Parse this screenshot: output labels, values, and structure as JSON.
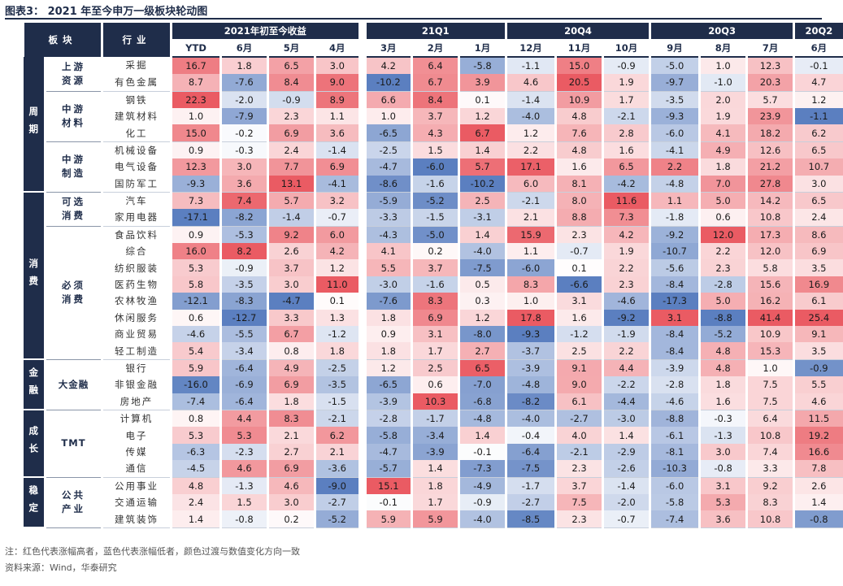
{
  "title": "图表3：  2021 年至今申万一级板块轮动图",
  "header": {
    "sector": "板块",
    "industry": "行业",
    "groups": [
      "2021年初至今收益",
      "21Q1",
      "20Q4",
      "20Q3",
      "20Q2"
    ],
    "cols": [
      "YTD",
      "6月",
      "5月",
      "4月",
      "3月",
      "2月",
      "1月",
      "12月",
      "11月",
      "10月",
      "9月",
      "8月",
      "7月",
      "6月"
    ]
  },
  "sections": [
    {
      "name": "周期",
      "groups": [
        {
          "name": "上游资源",
          "rows": [
            {
              "ind": "采掘",
              "v": [
                16.7,
                1.8,
                6.5,
                3.0,
                4.2,
                6.4,
                -5.8,
                -1.1,
                15.0,
                -0.9,
                -5.0,
                1.0,
                12.3,
                -0.1
              ]
            },
            {
              "ind": "有色金属",
              "v": [
                8.7,
                -7.6,
                8.4,
                9.0,
                -10.2,
                6.7,
                3.9,
                4.6,
                20.5,
                1.9,
                -9.7,
                -1.0,
                20.3,
                4.7
              ]
            }
          ]
        },
        {
          "name": "中游材料",
          "rows": [
            {
              "ind": "钢铁",
              "v": [
                22.3,
                -2.0,
                -0.9,
                8.9,
                6.6,
                8.4,
                0.1,
                -1.4,
                10.9,
                1.7,
                -3.5,
                2.0,
                5.7,
                1.2
              ]
            },
            {
              "ind": "建筑材料",
              "v": [
                1.0,
                -7.9,
                2.3,
                1.1,
                1.0,
                3.7,
                1.2,
                -4.0,
                4.8,
                -2.1,
                -9.3,
                1.9,
                23.9,
                -1.1
              ]
            },
            {
              "ind": "化工",
              "v": [
                15.0,
                -0.2,
                6.9,
                3.6,
                -6.5,
                4.3,
                6.7,
                1.2,
                7.6,
                2.8,
                -6.0,
                4.1,
                18.2,
                6.2
              ]
            }
          ]
        },
        {
          "name": "中游制造",
          "rows": [
            {
              "ind": "机械设备",
              "v": [
                0.9,
                -0.3,
                2.4,
                -1.4,
                -2.5,
                1.5,
                1.4,
                2.2,
                4.8,
                1.6,
                -4.1,
                4.9,
                12.6,
                6.5
              ]
            },
            {
              "ind": "电气设备",
              "v": [
                12.3,
                3.0,
                7.7,
                6.9,
                -4.7,
                -6.0,
                5.7,
                17.1,
                1.6,
                6.5,
                2.2,
                1.8,
                21.2,
                10.7
              ]
            },
            {
              "ind": "国防军工",
              "v": [
                -9.3,
                3.6,
                13.1,
                -4.1,
                -8.6,
                -1.6,
                -10.2,
                6.0,
                8.1,
                -4.2,
                -4.8,
                7.0,
                27.8,
                3.0
              ]
            }
          ]
        }
      ]
    },
    {
      "name": "消费",
      "groups": [
        {
          "name": "可选消费",
          "rows": [
            {
              "ind": "汽车",
              "v": [
                7.3,
                7.4,
                5.7,
                3.2,
                -5.9,
                -5.2,
                2.5,
                -2.1,
                8.0,
                11.6,
                1.1,
                5.0,
                14.2,
                6.5
              ]
            },
            {
              "ind": "家用电器",
              "v": [
                -17.1,
                -8.2,
                -1.4,
                -0.7,
                -3.3,
                -1.5,
                -3.1,
                2.1,
                8.8,
                7.3,
                -1.8,
                0.6,
                10.8,
                2.4
              ]
            }
          ]
        },
        {
          "name": "必须消费",
          "rows": [
            {
              "ind": "食品饮料",
              "v": [
                0.9,
                -5.3,
                9.2,
                6.0,
                -4.3,
                -5.0,
                1.4,
                15.9,
                2.3,
                4.2,
                -9.2,
                12.0,
                17.3,
                8.6
              ]
            },
            {
              "ind": "综合",
              "v": [
                16.0,
                8.2,
                2.6,
                4.2,
                4.1,
                0.2,
                -4.0,
                1.1,
                -0.7,
                1.9,
                -10.7,
                2.2,
                12.0,
                6.9
              ]
            },
            {
              "ind": "纺织服装",
              "v": [
                5.3,
                -0.9,
                3.7,
                1.2,
                5.5,
                3.7,
                -7.5,
                -6.0,
                0.1,
                2.2,
                -5.6,
                2.3,
                5.8,
                3.5
              ]
            },
            {
              "ind": "医药生物",
              "v": [
                5.8,
                -3.5,
                3.0,
                11.0,
                -3.0,
                -1.6,
                0.5,
                8.3,
                -6.6,
                2.3,
                -8.4,
                -2.8,
                15.6,
                16.9
              ]
            },
            {
              "ind": "农林牧渔",
              "v": [
                -12.1,
                -8.3,
                -4.7,
                0.1,
                -7.6,
                8.3,
                0.3,
                1.0,
                3.1,
                -4.6,
                -17.3,
                5.0,
                16.2,
                6.1
              ]
            },
            {
              "ind": "休闲服务",
              "v": [
                0.6,
                -12.7,
                3.3,
                1.3,
                1.8,
                6.9,
                1.2,
                17.8,
                1.6,
                -9.2,
                3.1,
                -8.8,
                41.4,
                25.4
              ]
            },
            {
              "ind": "商业贸易",
              "v": [
                -4.6,
                -5.5,
                6.7,
                -1.2,
                0.9,
                3.1,
                -8.0,
                -9.3,
                -1.2,
                -1.9,
                -8.4,
                -5.2,
                10.9,
                9.1
              ]
            },
            {
              "ind": "轻工制造",
              "v": [
                5.4,
                -3.4,
                0.8,
                1.8,
                1.8,
                1.7,
                2.7,
                -3.7,
                2.5,
                2.2,
                -8.4,
                4.8,
                15.3,
                3.5
              ]
            }
          ]
        }
      ]
    },
    {
      "name": "金融",
      "groups": [
        {
          "name": "大金融",
          "rows": [
            {
              "ind": "银行",
              "v": [
                5.9,
                -6.4,
                4.9,
                -2.5,
                1.2,
                2.5,
                6.5,
                -3.9,
                9.1,
                4.4,
                -3.9,
                4.8,
                1.0,
                -0.9
              ]
            },
            {
              "ind": "非银金融",
              "v": [
                -16.0,
                -6.9,
                6.9,
                -3.5,
                -6.5,
                0.6,
                -7.0,
                -4.8,
                9.0,
                -2.2,
                -2.8,
                1.8,
                7.5,
                5.5
              ]
            },
            {
              "ind": "房地产",
              "v": [
                -7.4,
                -6.4,
                1.8,
                -1.5,
                -3.9,
                10.3,
                -6.8,
                -8.2,
                6.1,
                -4.4,
                -4.6,
                1.6,
                7.5,
                4.6
              ]
            }
          ]
        }
      ]
    },
    {
      "name": "成长",
      "groups": [
        {
          "name": "TMT",
          "rows": [
            {
              "ind": "计算机",
              "v": [
                0.8,
                4.4,
                8.3,
                -2.1,
                -2.8,
                -1.7,
                -4.8,
                -4.0,
                -2.7,
                -3.0,
                -8.8,
                -0.3,
                6.4,
                11.5
              ]
            },
            {
              "ind": "电子",
              "v": [
                5.3,
                5.3,
                2.1,
                6.2,
                -5.8,
                -3.4,
                1.4,
                -0.4,
                4.0,
                1.4,
                -6.1,
                -1.3,
                10.8,
                19.2
              ]
            },
            {
              "ind": "传媒",
              "v": [
                -6.3,
                -2.3,
                2.7,
                2.1,
                -4.7,
                -3.9,
                -0.1,
                -6.4,
                -2.1,
                -2.9,
                -8.1,
                3.0,
                7.4,
                16.6
              ]
            },
            {
              "ind": "通信",
              "v": [
                -4.5,
                4.6,
                6.9,
                -3.6,
                -5.7,
                1.4,
                -7.3,
                -7.5,
                2.3,
                -2.6,
                -10.3,
                -0.8,
                3.3,
                7.8
              ]
            }
          ]
        }
      ]
    },
    {
      "name": "稳定",
      "groups": [
        {
          "name": "公共产业",
          "rows": [
            {
              "ind": "公用事业",
              "v": [
                4.8,
                -1.3,
                4.6,
                -9.0,
                15.1,
                1.8,
                -4.9,
                -1.7,
                3.7,
                -1.4,
                -6.0,
                3.1,
                9.2,
                2.6
              ]
            },
            {
              "ind": "交通运输",
              "v": [
                2.4,
                1.5,
                3.0,
                -2.7,
                -0.1,
                1.7,
                -0.9,
                -2.7,
                7.5,
                -2.0,
                -5.8,
                5.3,
                8.3,
                1.4
              ]
            },
            {
              "ind": "建筑装饰",
              "v": [
                1.4,
                -0.8,
                0.2,
                -5.2,
                5.9,
                5.9,
                -4.0,
                -8.5,
                2.3,
                -0.7,
                -7.4,
                3.6,
                10.8,
                -0.8
              ]
            }
          ]
        }
      ]
    }
  ],
  "notes": {
    "note": "注：红色代表涨幅高者，蓝色代表涨幅低者，颜色过渡与数值变化方向一致",
    "source": "资料来源：Wind，华泰研究"
  },
  "colors": {
    "high": "#ea5b63",
    "mid": "#ffffff",
    "low": "#5b7fc0",
    "navy": "#1f2d4a"
  }
}
